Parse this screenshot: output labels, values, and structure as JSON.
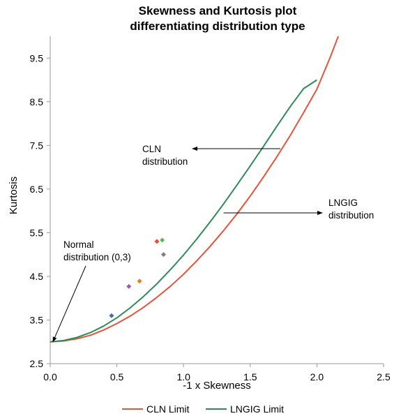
{
  "chart_data": {
    "type": "scatter",
    "title_lines": [
      "Skewness and Kurtosis plot",
      "differentiating distribution type"
    ],
    "xlabel": "-1 x Skewness",
    "ylabel": "Kurtosis",
    "xlim": [
      0,
      2.5
    ],
    "ylim": [
      2.5,
      10
    ],
    "x_ticks": [
      "0.0",
      "0.5",
      "1.0",
      "1.5",
      "2.0",
      "2.5"
    ],
    "y_ticks": [
      "2.5",
      "3.5",
      "4.5",
      "5.5",
      "6.5",
      "7.5",
      "8.5",
      "9.5"
    ],
    "grid": false,
    "legend_position": "bottom",
    "series": [
      {
        "name": "CLN Limit",
        "color": "#e8523a",
        "x": [
          0,
          0.1,
          0.2,
          0.3,
          0.4,
          0.5,
          0.6,
          0.7,
          0.8,
          0.9,
          1.0,
          1.1,
          1.2,
          1.3,
          1.4,
          1.5,
          1.6,
          1.7,
          1.8,
          1.9,
          2.0,
          2.1,
          2.16
        ],
        "y": [
          3.0,
          3.02,
          3.07,
          3.15,
          3.27,
          3.42,
          3.59,
          3.79,
          4.02,
          4.27,
          4.55,
          4.86,
          5.19,
          5.55,
          5.93,
          6.34,
          6.78,
          7.24,
          7.73,
          8.25,
          8.79,
          9.52,
          10.0
        ]
      },
      {
        "name": "LNGIG Limit",
        "color": "#2e8b57",
        "x": [
          0,
          0.1,
          0.2,
          0.3,
          0.4,
          0.5,
          0.6,
          0.7,
          0.8,
          0.9,
          1.0,
          1.1,
          1.2,
          1.3,
          1.4,
          1.5,
          1.6,
          1.7,
          1.8,
          1.9,
          2.0
        ],
        "y": [
          3.0,
          3.03,
          3.1,
          3.21,
          3.36,
          3.55,
          3.78,
          4.04,
          4.33,
          4.65,
          4.99,
          5.36,
          5.75,
          6.16,
          6.59,
          7.03,
          7.48,
          7.94,
          8.39,
          8.8,
          9.0
        ]
      }
    ],
    "points": [
      {
        "x": 0.46,
        "y": 3.6,
        "color": "#3b6fb6"
      },
      {
        "x": 0.59,
        "y": 4.27,
        "color": "#9b59b6"
      },
      {
        "x": 0.67,
        "y": 4.39,
        "color": "#e67e22"
      },
      {
        "x": 0.8,
        "y": 5.3,
        "color": "#e74c3c"
      },
      {
        "x": 0.84,
        "y": 5.33,
        "color": "#5cb85c"
      },
      {
        "x": 0.85,
        "y": 5.0,
        "color": "#7f7f7f"
      }
    ],
    "annotations": [
      {
        "lines": [
          "Normal",
          "distribution (0,3)"
        ],
        "arrow_to": [
          0.02,
          3.0
        ]
      },
      {
        "lines": [
          "CLN",
          "distribution"
        ],
        "arrow_to": [
          1.6,
          7.5
        ]
      },
      {
        "lines": [
          "LNGIG",
          "distribution"
        ],
        "arrow_to": [
          1.3,
          5.95
        ]
      }
    ]
  }
}
